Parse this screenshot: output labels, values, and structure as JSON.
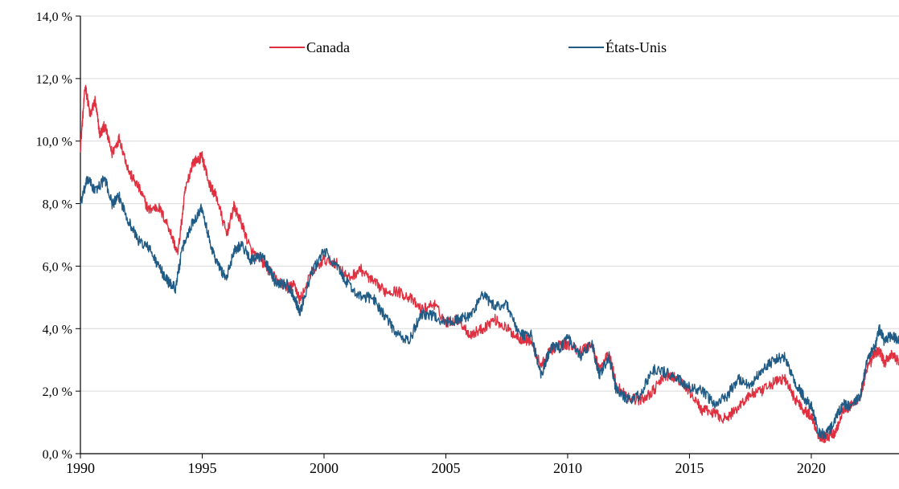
{
  "chart_data": {
    "type": "line",
    "title": "",
    "xlabel": "",
    "ylabel": "",
    "xlim": [
      1990,
      2023.6
    ],
    "ylim": [
      0,
      14
    ],
    "y_ticks": [
      "0,0 %",
      "2,0 %",
      "4,0 %",
      "6,0 %",
      "8,0 %",
      "10,0 %",
      "12,0 %",
      "14,0 %"
    ],
    "x_ticks": [
      "1990",
      "1995",
      "2000",
      "2005",
      "2010",
      "2015",
      "2020"
    ],
    "grid": "horizontal",
    "legend_position": "top",
    "series": [
      {
        "name": "Canada",
        "color": "#e03040",
        "x": [
          1990.0,
          1990.2,
          1990.4,
          1990.6,
          1990.8,
          1991.0,
          1991.3,
          1991.6,
          1992.0,
          1992.4,
          1992.8,
          1993.2,
          1993.6,
          1994.0,
          1994.3,
          1994.6,
          1995.0,
          1995.3,
          1995.6,
          1996.0,
          1996.3,
          1996.6,
          1997.0,
          1997.5,
          1998.0,
          1998.5,
          1998.8,
          1999.0,
          1999.5,
          2000.0,
          2000.5,
          2001.0,
          2001.5,
          2002.0,
          2002.5,
          2003.0,
          2003.5,
          2004.0,
          2004.5,
          2005.0,
          2005.5,
          2006.0,
          2006.5,
          2007.0,
          2007.5,
          2008.0,
          2008.5,
          2008.9,
          2009.3,
          2009.7,
          2010.0,
          2010.5,
          2011.0,
          2011.3,
          2011.7,
          2012.0,
          2012.5,
          2013.0,
          2013.5,
          2014.0,
          2014.5,
          2015.0,
          2015.5,
          2016.0,
          2016.5,
          2017.0,
          2017.5,
          2018.0,
          2018.5,
          2018.9,
          2019.3,
          2019.7,
          2020.0,
          2020.3,
          2020.6,
          2021.0,
          2021.3,
          2021.6,
          2022.0,
          2022.3,
          2022.6,
          2022.8,
          2023.0,
          2023.3,
          2023.6
        ],
        "values": [
          9.8,
          11.8,
          10.8,
          11.3,
          10.2,
          10.5,
          9.6,
          10.1,
          9.0,
          8.5,
          7.8,
          7.9,
          7.3,
          6.4,
          8.4,
          9.3,
          9.5,
          8.6,
          8.2,
          7.0,
          7.9,
          7.4,
          6.5,
          6.1,
          5.6,
          5.3,
          5.4,
          4.9,
          5.8,
          6.2,
          6.1,
          5.6,
          5.9,
          5.5,
          5.2,
          5.2,
          5.0,
          4.6,
          4.8,
          4.2,
          4.3,
          3.8,
          4.0,
          4.3,
          4.0,
          3.7,
          3.6,
          2.8,
          3.3,
          3.5,
          3.5,
          3.3,
          3.5,
          2.7,
          3.2,
          2.2,
          1.8,
          1.7,
          2.0,
          2.5,
          2.4,
          2.0,
          1.4,
          1.3,
          1.1,
          1.5,
          1.9,
          2.0,
          2.3,
          2.4,
          1.8,
          1.4,
          1.2,
          0.6,
          0.5,
          0.7,
          1.4,
          1.5,
          1.8,
          2.7,
          3.2,
          3.3,
          2.9,
          3.2,
          2.9
        ]
      },
      {
        "name": "États-Unis",
        "color": "#1f5b85",
        "x": [
          1990.0,
          1990.3,
          1990.6,
          1991.0,
          1991.3,
          1991.6,
          1992.0,
          1992.4,
          1992.8,
          1993.2,
          1993.6,
          1993.9,
          1994.2,
          1994.6,
          1995.0,
          1995.3,
          1995.6,
          1996.0,
          1996.3,
          1996.6,
          1997.0,
          1997.5,
          1998.0,
          1998.5,
          1998.8,
          1999.0,
          1999.5,
          2000.0,
          2000.5,
          2001.0,
          2001.5,
          2002.0,
          2002.5,
          2003.0,
          2003.5,
          2004.0,
          2004.5,
          2005.0,
          2005.5,
          2006.0,
          2006.5,
          2007.0,
          2007.5,
          2008.0,
          2008.5,
          2008.9,
          2009.3,
          2009.7,
          2010.0,
          2010.5,
          2011.0,
          2011.3,
          2011.7,
          2012.0,
          2012.5,
          2013.0,
          2013.5,
          2014.0,
          2014.5,
          2015.0,
          2015.5,
          2016.0,
          2016.5,
          2017.0,
          2017.5,
          2018.0,
          2018.5,
          2018.9,
          2019.3,
          2019.7,
          2020.0,
          2020.3,
          2020.6,
          2021.0,
          2021.3,
          2021.6,
          2022.0,
          2022.3,
          2022.6,
          2022.8,
          2023.0,
          2023.3,
          2023.6
        ],
        "values": [
          8.0,
          8.8,
          8.4,
          8.8,
          8.0,
          8.2,
          7.4,
          6.8,
          6.6,
          6.0,
          5.5,
          5.3,
          6.6,
          7.4,
          7.9,
          6.8,
          6.1,
          5.6,
          6.5,
          6.7,
          6.2,
          6.3,
          5.5,
          5.4,
          5.0,
          4.5,
          5.8,
          6.5,
          6.0,
          5.4,
          5.0,
          5.0,
          4.4,
          3.8,
          3.6,
          4.5,
          4.4,
          4.2,
          4.3,
          4.4,
          5.1,
          4.7,
          4.8,
          3.8,
          3.8,
          2.5,
          3.4,
          3.4,
          3.7,
          3.1,
          3.5,
          2.5,
          3.1,
          2.0,
          1.7,
          1.9,
          2.7,
          2.6,
          2.4,
          2.1,
          2.0,
          1.6,
          1.8,
          2.4,
          2.2,
          2.7,
          3.0,
          3.1,
          2.3,
          1.8,
          1.5,
          0.7,
          0.6,
          1.1,
          1.6,
          1.5,
          1.8,
          3.0,
          3.4,
          4.0,
          3.6,
          3.8,
          3.6
        ]
      }
    ]
  }
}
